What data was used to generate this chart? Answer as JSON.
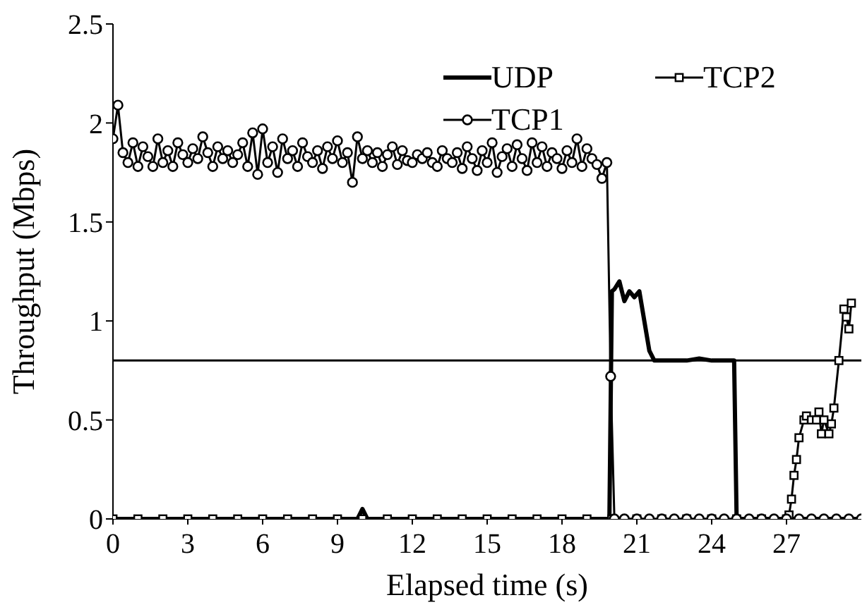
{
  "chart_data": {
    "type": "line",
    "xlabel": "Elapsed time (s)",
    "ylabel": "Throughput (Mbps)",
    "xlim": [
      0,
      30
    ],
    "xticks": [
      0,
      3,
      6,
      9,
      12,
      15,
      18,
      21,
      24,
      27
    ],
    "ylim": [
      0,
      2.5
    ],
    "yticks": [
      0,
      0.5,
      1,
      1.5,
      2,
      2.5
    ],
    "grid": false,
    "legend": "top right",
    "ref_lines": [
      {
        "axis": "y",
        "value": 0.8,
        "color": "#000000",
        "line_style": "solid"
      }
    ],
    "series": [
      {
        "name": "UDP",
        "color": "#000000",
        "marker": "none",
        "x": [
          0,
          5,
          9.8,
          10,
          10.2,
          15,
          19.9,
          20,
          20.1,
          20.3,
          20.5,
          20.7,
          20.9,
          21.1,
          21.3,
          21.5,
          21.7,
          22,
          22.5,
          23,
          23.5,
          24,
          24.5,
          24.9,
          25,
          27,
          30
        ],
        "values": [
          0,
          0,
          0,
          0.05,
          0,
          0,
          0,
          1.15,
          1.16,
          1.2,
          1.1,
          1.15,
          1.12,
          1.15,
          1,
          0.85,
          0.8,
          0.8,
          0.8,
          0.8,
          0.81,
          0.8,
          0.8,
          0.8,
          0,
          0,
          0
        ]
      },
      {
        "name": "TCP2",
        "color": "#000000",
        "marker": "square",
        "x": [
          0,
          1,
          2,
          3,
          4,
          5,
          6,
          7,
          8,
          9,
          10,
          11,
          12,
          13,
          14,
          15,
          16,
          17,
          18,
          19,
          20,
          21,
          22,
          23,
          24,
          25,
          26,
          27,
          27.1,
          27.2,
          27.3,
          27.4,
          27.5,
          27.7,
          27.8,
          28,
          28.2,
          28.3,
          28.4,
          28.5,
          28.7,
          28.8,
          28.9,
          29.1,
          29.3,
          29.4,
          29.5,
          29.6
        ],
        "values": [
          0,
          0,
          0,
          0,
          0,
          0,
          0,
          0,
          0,
          0,
          0,
          0,
          0,
          0,
          0,
          0,
          0,
          0,
          0,
          0,
          0,
          0,
          0,
          0,
          0,
          0,
          0,
          0,
          0.02,
          0.1,
          0.22,
          0.3,
          0.41,
          0.5,
          0.52,
          0.5,
          0.5,
          0.54,
          0.43,
          0.5,
          0.43,
          0.48,
          0.56,
          0.8,
          1.06,
          1.02,
          0.96,
          1.09
        ]
      },
      {
        "name": "TCP1",
        "color": "#000000",
        "marker": "circle",
        "x": [
          0,
          0.2,
          0.4,
          0.6,
          0.8,
          1,
          1.2,
          1.4,
          1.6,
          1.8,
          2,
          2.2,
          2.4,
          2.6,
          2.8,
          3,
          3.2,
          3.4,
          3.6,
          3.8,
          4,
          4.2,
          4.4,
          4.6,
          4.8,
          5,
          5.2,
          5.4,
          5.6,
          5.8,
          6,
          6.2,
          6.4,
          6.6,
          6.8,
          7,
          7.2,
          7.4,
          7.6,
          7.8,
          8,
          8.2,
          8.4,
          8.6,
          8.8,
          9,
          9.2,
          9.4,
          9.6,
          9.8,
          10,
          10.2,
          10.4,
          10.6,
          10.8,
          11,
          11.2,
          11.4,
          11.6,
          11.8,
          12,
          12.2,
          12.4,
          12.6,
          12.8,
          13,
          13.2,
          13.4,
          13.6,
          13.8,
          14,
          14.2,
          14.4,
          14.6,
          14.8,
          15,
          15.2,
          15.4,
          15.6,
          15.8,
          16,
          16.2,
          16.4,
          16.6,
          16.8,
          17,
          17.2,
          17.4,
          17.6,
          17.8,
          18,
          18.2,
          18.4,
          18.6,
          18.8,
          19,
          19.2,
          19.4,
          19.6,
          19.8,
          19.95,
          20.1,
          20.5,
          21,
          21.5,
          22,
          22.5,
          23,
          23.5,
          24,
          24.5,
          25,
          25.5,
          26,
          26.5,
          27,
          27.5,
          28,
          28.5,
          29,
          29.5,
          30
        ],
        "values": [
          1.92,
          2.09,
          1.85,
          1.8,
          1.9,
          1.78,
          1.88,
          1.83,
          1.78,
          1.92,
          1.8,
          1.86,
          1.78,
          1.9,
          1.84,
          1.8,
          1.87,
          1.82,
          1.93,
          1.85,
          1.78,
          1.88,
          1.82,
          1.86,
          1.8,
          1.84,
          1.9,
          1.78,
          1.95,
          1.74,
          1.97,
          1.8,
          1.88,
          1.75,
          1.92,
          1.82,
          1.86,
          1.78,
          1.9,
          1.83,
          1.8,
          1.86,
          1.77,
          1.88,
          1.82,
          1.91,
          1.8,
          1.85,
          1.7,
          1.93,
          1.82,
          1.86,
          1.8,
          1.85,
          1.78,
          1.84,
          1.88,
          1.79,
          1.86,
          1.81,
          1.8,
          1.84,
          1.82,
          1.85,
          1.8,
          1.78,
          1.86,
          1.82,
          1.8,
          1.85,
          1.77,
          1.88,
          1.82,
          1.76,
          1.86,
          1.8,
          1.9,
          1.75,
          1.83,
          1.87,
          1.78,
          1.89,
          1.82,
          1.76,
          1.9,
          1.8,
          1.88,
          1.78,
          1.85,
          1.82,
          1.77,
          1.86,
          1.8,
          1.92,
          1.78,
          1.87,
          1.82,
          1.79,
          1.72,
          1.8,
          0.72,
          0,
          0,
          0,
          0,
          0,
          0,
          0,
          0,
          0,
          0,
          0,
          0,
          0,
          0,
          0,
          0,
          0,
          0,
          0,
          0,
          0
        ]
      }
    ]
  }
}
